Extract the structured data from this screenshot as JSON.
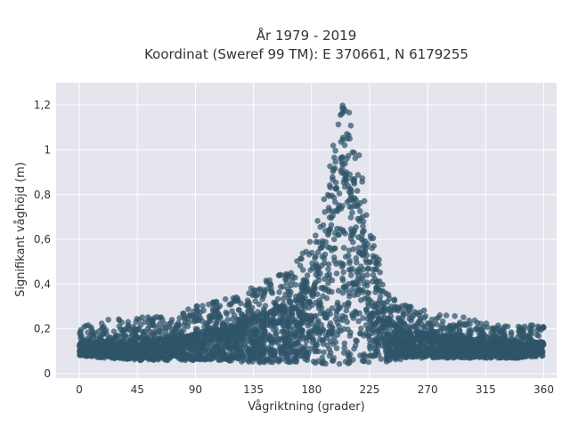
{
  "chart_data": {
    "type": "scatter",
    "title_line1": "År 1979 - 2019",
    "title_line2": "Koordinat (Sweref 99 TM): E 370661, N 6179255",
    "xlabel": "Vågriktning (grader)",
    "ylabel": "Signifikant våghöjd (m)",
    "xlim": [
      -18,
      370
    ],
    "ylim": [
      -0.02,
      1.3
    ],
    "x_ticks": [
      0,
      45,
      90,
      135,
      180,
      225,
      270,
      315,
      360
    ],
    "x_tick_labels": [
      "0",
      "45",
      "90",
      "135",
      "180",
      "225",
      "270",
      "315",
      "360"
    ],
    "y_ticks": [
      0,
      0.2,
      0.4,
      0.6,
      0.8,
      1.0,
      1.2
    ],
    "y_tick_labels": [
      "0",
      "0,2",
      "0,4",
      "0,6",
      "0,8",
      "1",
      "1,2"
    ],
    "grid": true,
    "marker_color": "#2f5469",
    "envelope": {
      "direction": [
        0,
        20,
        45,
        70,
        90,
        110,
        130,
        150,
        165,
        180,
        190,
        200,
        205,
        210,
        218,
        225,
        235,
        245,
        260,
        280,
        300,
        320,
        340,
        360
      ],
      "wave_height_max": [
        0.21,
        0.24,
        0.25,
        0.27,
        0.3,
        0.33,
        0.38,
        0.44,
        0.48,
        0.6,
        0.82,
        1.12,
        1.26,
        1.16,
        0.95,
        0.68,
        0.45,
        0.33,
        0.29,
        0.27,
        0.25,
        0.22,
        0.21,
        0.23
      ],
      "wave_height_min": [
        0.08,
        0.07,
        0.06,
        0.06,
        0.06,
        0.06,
        0.05,
        0.05,
        0.05,
        0.05,
        0.04,
        0.04,
        0.04,
        0.04,
        0.04,
        0.05,
        0.05,
        0.06,
        0.07,
        0.07,
        0.07,
        0.07,
        0.07,
        0.08
      ],
      "wave_height_typical": [
        0.14,
        0.14,
        0.14,
        0.16,
        0.18,
        0.21,
        0.24,
        0.28,
        0.32,
        0.42,
        0.62,
        0.85,
        0.95,
        0.88,
        0.7,
        0.48,
        0.3,
        0.22,
        0.19,
        0.17,
        0.16,
        0.15,
        0.14,
        0.14
      ]
    },
    "approx_point_count": 4000
  }
}
